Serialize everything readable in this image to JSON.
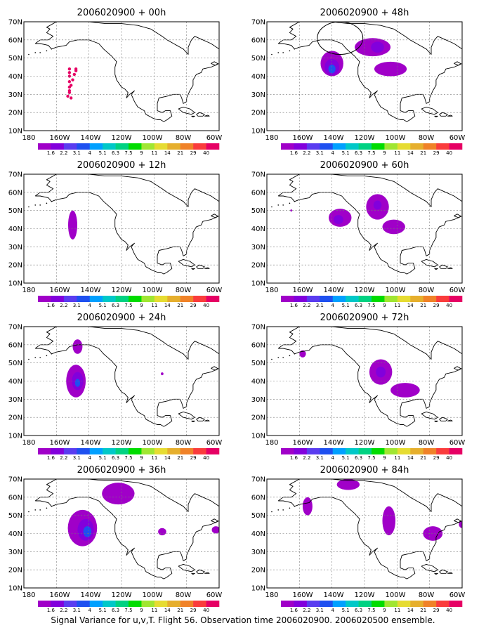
{
  "caption": "Signal Variance for u,v,T. Flight 56. Observation time 2006020900. 2006020500 ensemble.",
  "axes": {
    "lon_labels": [
      "180",
      "160W",
      "140W",
      "120W",
      "100W",
      "80W",
      "60W"
    ],
    "lat_labels": [
      "70N",
      "60N",
      "50N",
      "40N",
      "30N",
      "20N",
      "10N"
    ],
    "lon_range": [
      180,
      300
    ],
    "lat_range": [
      10,
      70
    ],
    "grid": true
  },
  "colorbar": {
    "labels": [
      "1.6",
      "2.2",
      "3.1",
      "4",
      "5.1",
      "6.3",
      "7.5",
      "9",
      "11",
      "14",
      "21",
      "29",
      "40"
    ],
    "colors": [
      "#a000c8",
      "#8200dc",
      "#5a3cf0",
      "#1e50f0",
      "#00a0ff",
      "#00c8c8",
      "#00d282",
      "#00dc00",
      "#a0e632",
      "#e6dc32",
      "#e6af2d",
      "#f08228",
      "#fa3c3c",
      "#e60064"
    ]
  },
  "panels": [
    {
      "title": "2006020900 + 00h",
      "features": [
        {
          "type": "dots",
          "color": "#e60064",
          "points": [
            [
              208,
              44
            ],
            [
              208,
              42
            ],
            [
              208,
              40
            ],
            [
              208,
              37
            ],
            [
              208,
              34
            ],
            [
              208,
              31
            ],
            [
              209,
              28
            ],
            [
              212,
              44
            ],
            [
              211,
              41
            ],
            [
              210,
              38
            ],
            [
              209,
              35
            ],
            [
              208,
              32
            ],
            [
              207,
              29
            ],
            [
              212,
              43
            ]
          ]
        }
      ]
    },
    {
      "title": "2006020900 + 48h",
      "features": [
        {
          "type": "blob",
          "color": "#a000c8",
          "lon": 220,
          "lat": 47,
          "rx": 7,
          "ry": 7
        },
        {
          "type": "blob",
          "color": "#8200dc",
          "lon": 220,
          "lat": 45,
          "rx": 4.5,
          "ry": 4.5
        },
        {
          "type": "blob",
          "color": "#1e50f0",
          "lon": 220,
          "lat": 44,
          "rx": 2.2,
          "ry": 2.4
        },
        {
          "type": "blob",
          "color": "#a000c8",
          "lon": 245,
          "lat": 56,
          "rx": 11,
          "ry": 5
        },
        {
          "type": "blob",
          "color": "#8200dc",
          "lon": 248,
          "lat": 56,
          "rx": 4,
          "ry": 3
        },
        {
          "type": "blob",
          "color": "#a000c8",
          "lon": 256,
          "lat": 44,
          "rx": 10,
          "ry": 4
        },
        {
          "type": "ellipse",
          "lon": 225,
          "lat": 61,
          "rx": 14,
          "ry": 9
        }
      ]
    },
    {
      "title": "2006020900 + 12h",
      "features": [
        {
          "type": "blob",
          "color": "#a000c8",
          "lon": 210,
          "lat": 42,
          "rx": 2.8,
          "ry": 8
        }
      ]
    },
    {
      "title": "2006020900 + 60h",
      "features": [
        {
          "type": "blob",
          "color": "#a000c8",
          "lon": 225,
          "lat": 46,
          "rx": 7,
          "ry": 5
        },
        {
          "type": "blob",
          "color": "#8200dc",
          "lon": 224,
          "lat": 45,
          "rx": 3,
          "ry": 2.5
        },
        {
          "type": "blob",
          "color": "#a000c8",
          "lon": 248,
          "lat": 52,
          "rx": 7,
          "ry": 7
        },
        {
          "type": "blob",
          "color": "#8200dc",
          "lon": 248,
          "lat": 53,
          "rx": 2.5,
          "ry": 2.5
        },
        {
          "type": "blob",
          "color": "#a000c8",
          "lon": 258,
          "lat": 41,
          "rx": 7,
          "ry": 4
        },
        {
          "type": "blob",
          "color": "#a000c8",
          "lon": 195,
          "lat": 50,
          "rx": 0.6,
          "ry": 0.6
        }
      ]
    },
    {
      "title": "2006020900 + 24h",
      "features": [
        {
          "type": "blob",
          "color": "#a000c8",
          "lon": 212,
          "lat": 40,
          "rx": 6,
          "ry": 9
        },
        {
          "type": "blob",
          "color": "#8200dc",
          "lon": 213,
          "lat": 40,
          "rx": 3.5,
          "ry": 5
        },
        {
          "type": "blob",
          "color": "#1e50f0",
          "lon": 213,
          "lat": 39,
          "rx": 1.6,
          "ry": 2.2
        },
        {
          "type": "blob",
          "color": "#a000c8",
          "lon": 213,
          "lat": 59,
          "rx": 3,
          "ry": 4
        },
        {
          "type": "blob",
          "color": "#a000c8",
          "lon": 265,
          "lat": 44,
          "rx": 0.8,
          "ry": 0.8
        }
      ]
    },
    {
      "title": "2006020900 + 72h",
      "features": [
        {
          "type": "blob",
          "color": "#a000c8",
          "lon": 250,
          "lat": 45,
          "rx": 7,
          "ry": 7
        },
        {
          "type": "blob",
          "color": "#8200dc",
          "lon": 250,
          "lat": 45,
          "rx": 3,
          "ry": 3
        },
        {
          "type": "blob",
          "color": "#a000c8",
          "lon": 265,
          "lat": 35,
          "rx": 9,
          "ry": 4
        },
        {
          "type": "blob",
          "color": "#a000c8",
          "lon": 202,
          "lat": 55,
          "rx": 2,
          "ry": 2
        }
      ]
    },
    {
      "title": "2006020900 + 36h",
      "features": [
        {
          "type": "blob",
          "color": "#a000c8",
          "lon": 216,
          "lat": 43,
          "rx": 9,
          "ry": 10
        },
        {
          "type": "blob",
          "color": "#8200dc",
          "lon": 218,
          "lat": 42,
          "rx": 5,
          "ry": 6
        },
        {
          "type": "blob",
          "color": "#1e50f0",
          "lon": 219,
          "lat": 41,
          "rx": 2.5,
          "ry": 3
        },
        {
          "type": "blob",
          "color": "#a000c8",
          "lon": 238,
          "lat": 62,
          "rx": 10,
          "ry": 6
        },
        {
          "type": "blob",
          "color": "#a000c8",
          "lon": 265,
          "lat": 41,
          "rx": 2.5,
          "ry": 2
        },
        {
          "type": "blob",
          "color": "#a000c8",
          "lon": 298,
          "lat": 42,
          "rx": 2.5,
          "ry": 2
        }
      ]
    },
    {
      "title": "2006020900 + 84h",
      "features": [
        {
          "type": "blob",
          "color": "#a000c8",
          "lon": 230,
          "lat": 67,
          "rx": 7,
          "ry": 3
        },
        {
          "type": "blob",
          "color": "#a000c8",
          "lon": 205,
          "lat": 55,
          "rx": 3,
          "ry": 5
        },
        {
          "type": "blob",
          "color": "#a000c8",
          "lon": 255,
          "lat": 47,
          "rx": 4,
          "ry": 8
        },
        {
          "type": "blob",
          "color": "#a000c8",
          "lon": 282,
          "lat": 40,
          "rx": 6,
          "ry": 4
        },
        {
          "type": "blob",
          "color": "#a000c8",
          "lon": 300,
          "lat": 45,
          "rx": 2,
          "ry": 2
        }
      ]
    }
  ]
}
